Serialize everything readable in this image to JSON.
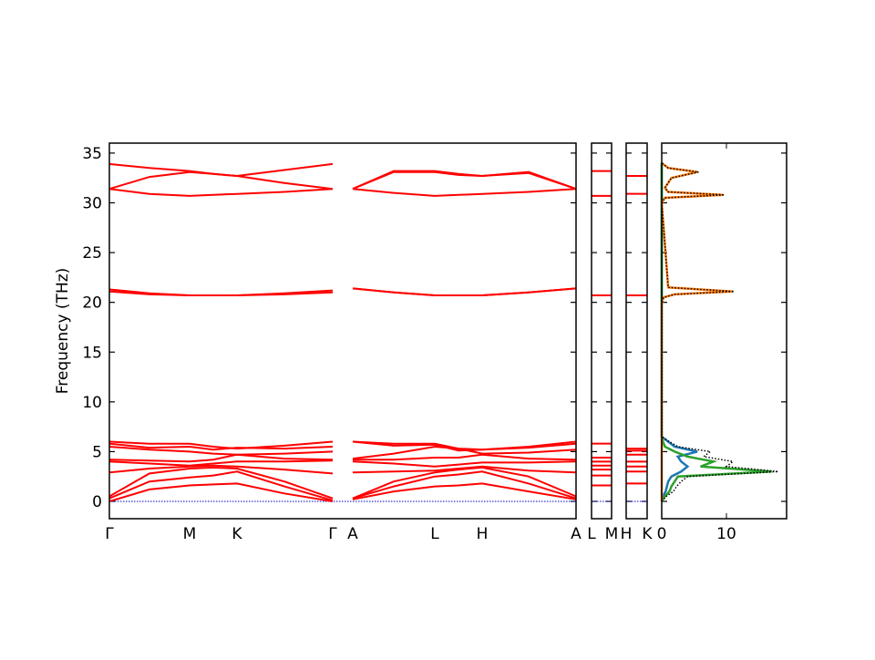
{
  "chart_data": [
    {
      "type": "bands",
      "ylabel": "Frequency (THz)",
      "color": "#ff0000",
      "ylim": [
        -1.74,
        36
      ],
      "yticks": [
        0,
        5,
        10,
        15,
        20,
        25,
        30,
        35
      ],
      "baseline": 0,
      "baseline_color": "#0000cc",
      "xlim": [
        0,
        5.12
      ],
      "xticks": [
        {
          "value": 0,
          "label": "Γ"
        },
        {
          "value": 0.88,
          "label": "M"
        },
        {
          "value": 1.4,
          "label": "K"
        },
        {
          "value": 2.45,
          "label": "Γ"
        },
        {
          "value": 2.67,
          "label": "A"
        },
        {
          "value": 3.57,
          "label": "L"
        },
        {
          "value": 4.09,
          "label": "H"
        },
        {
          "value": 5.12,
          "label": "A"
        }
      ],
      "x": [
        0,
        0.44,
        0.88,
        1.14,
        1.4,
        1.92,
        2.45,
        2.56,
        2.67,
        3.12,
        3.57,
        3.83,
        4.09,
        4.6,
        5.12
      ],
      "series": [
        {
          "values": [
            33.9,
            33.5,
            33.2,
            32.9,
            32.7,
            33.3,
            33.9,
            null,
            31.4,
            33.2,
            33.2,
            32.9,
            32.7,
            33.1,
            31.4
          ]
        },
        {
          "values": [
            31.4,
            32.6,
            33.1,
            32.9,
            32.7,
            32.0,
            31.4,
            null,
            31.4,
            33.1,
            33.1,
            32.8,
            32.7,
            33.0,
            31.4
          ]
        },
        {
          "values": [
            31.4,
            30.9,
            30.7,
            30.8,
            30.9,
            31.1,
            31.4,
            null,
            31.4,
            31.0,
            30.7,
            30.8,
            30.9,
            31.1,
            31.4
          ]
        },
        {
          "values": [
            21.3,
            20.9,
            20.7,
            20.7,
            20.7,
            20.9,
            21.2,
            null,
            21.4,
            21.0,
            20.7,
            20.7,
            20.7,
            21.0,
            21.4
          ]
        },
        {
          "values": [
            21.1,
            20.8,
            20.7,
            20.7,
            20.7,
            20.8,
            21.0,
            null,
            21.4,
            21.0,
            20.7,
            20.7,
            20.7,
            21.0,
            21.4
          ]
        },
        {
          "values": [
            6.0,
            5.8,
            5.8,
            5.5,
            5.3,
            5.6,
            6.0,
            null,
            6.0,
            5.8,
            5.8,
            5.3,
            5.2,
            5.5,
            6.0
          ]
        },
        {
          "values": [
            5.8,
            5.4,
            5.5,
            5.2,
            5.4,
            5.3,
            5.5,
            null,
            6.0,
            5.6,
            5.7,
            5.1,
            5.2,
            5.4,
            5.8
          ]
        },
        {
          "values": [
            5.5,
            5.2,
            5.0,
            4.8,
            4.7,
            4.8,
            5.0,
            null,
            4.3,
            4.8,
            5.5,
            5.3,
            4.8,
            4.9,
            5.2
          ]
        },
        {
          "values": [
            4.2,
            4.1,
            4.0,
            4.2,
            4.7,
            4.3,
            4.2,
            null,
            4.2,
            4.2,
            4.4,
            4.4,
            4.7,
            4.3,
            4.2
          ]
        },
        {
          "values": [
            4.0,
            3.8,
            3.6,
            3.8,
            4.0,
            4.0,
            4.1,
            null,
            4.0,
            3.8,
            3.5,
            3.7,
            3.9,
            3.9,
            4.0
          ]
        },
        {
          "values": [
            2.9,
            3.3,
            3.5,
            3.6,
            3.5,
            3.2,
            2.8,
            null,
            2.9,
            3.0,
            3.1,
            3.3,
            3.5,
            3.1,
            2.9
          ]
        },
        {
          "values": [
            0.5,
            2.8,
            3.3,
            3.4,
            3.3,
            2.0,
            0.3,
            null,
            0.3,
            2.0,
            2.9,
            3.2,
            3.4,
            2.5,
            0.5
          ]
        },
        {
          "values": [
            0.3,
            2.0,
            2.4,
            2.6,
            3.0,
            1.5,
            0.1,
            null,
            0.3,
            1.5,
            2.5,
            2.7,
            3.0,
            1.8,
            0.3
          ]
        },
        {
          "values": [
            0,
            1.2,
            1.6,
            1.7,
            1.8,
            0.8,
            0,
            null,
            0.2,
            1.0,
            1.5,
            1.6,
            1.8,
            1.0,
            0.2
          ]
        }
      ]
    },
    {
      "type": "levels",
      "color": "#ff0000",
      "xlim": [
        0,
        1
      ],
      "xticks": [
        {
          "value": 0,
          "label": "L"
        },
        {
          "value": 1,
          "label": "M"
        }
      ],
      "values": [
        33.2,
        30.7,
        20.7,
        5.8,
        4.4,
        4.0,
        3.6,
        3.2,
        2.6,
        1.6
      ]
    },
    {
      "type": "levels",
      "color": "#ff0000",
      "xlim": [
        0,
        1
      ],
      "xticks": [
        {
          "value": 0,
          "label": "H"
        },
        {
          "value": 1,
          "label": "K"
        }
      ],
      "values": [
        32.7,
        30.9,
        20.7,
        5.3,
        5.1,
        4.7,
        4.0,
        3.5,
        3.0,
        1.8
      ]
    },
    {
      "type": "dos",
      "xlim": [
        0,
        19.3
      ],
      "xticks": [
        0,
        10
      ],
      "y": [
        0,
        0.5,
        1,
        1.5,
        2,
        2.5,
        3,
        3.5,
        4,
        4.5,
        5,
        5.5,
        6,
        6.5,
        20,
        20.5,
        20.8,
        21.1,
        21.5,
        30,
        30.5,
        30.8,
        31.1,
        31.5,
        32.5,
        33.1,
        33.5,
        34
      ],
      "series": [
        {
          "color": "#1f77b4",
          "values": [
            0,
            0.2,
            0.6,
            0.8,
            1,
            1.5,
            3,
            4,
            3,
            2.5,
            5.5,
            2,
            1,
            0,
            0,
            0,
            0,
            0,
            0,
            0,
            0,
            0,
            0,
            0,
            0,
            0,
            0,
            0
          ]
        },
        {
          "color": "#2ca02c",
          "values": [
            0,
            0.5,
            1.2,
            1.5,
            2,
            2.5,
            17,
            6,
            8,
            4,
            2,
            0.5,
            0.2,
            0,
            0,
            0,
            0,
            0,
            0,
            0,
            0,
            0,
            0,
            0,
            0,
            0,
            0,
            0
          ]
        },
        {
          "color": "#ff7f0e",
          "values": [
            0,
            0,
            0,
            0,
            0,
            0,
            0,
            0,
            0,
            0,
            0,
            0,
            0,
            0,
            0,
            0.3,
            2,
            11,
            1,
            0,
            0.5,
            9.5,
            1,
            0.5,
            1.5,
            5.5,
            1,
            0
          ]
        },
        {
          "color": "#000000",
          "style": "dotted",
          "values": [
            0,
            0.7,
            1.8,
            2.3,
            3,
            4,
            18,
            10,
            11,
            6.5,
            7.5,
            2.5,
            1.2,
            0,
            0,
            0.3,
            2,
            11.2,
            1,
            0,
            0.5,
            9.7,
            1,
            0.5,
            1.5,
            5.7,
            1,
            0
          ]
        }
      ]
    }
  ]
}
